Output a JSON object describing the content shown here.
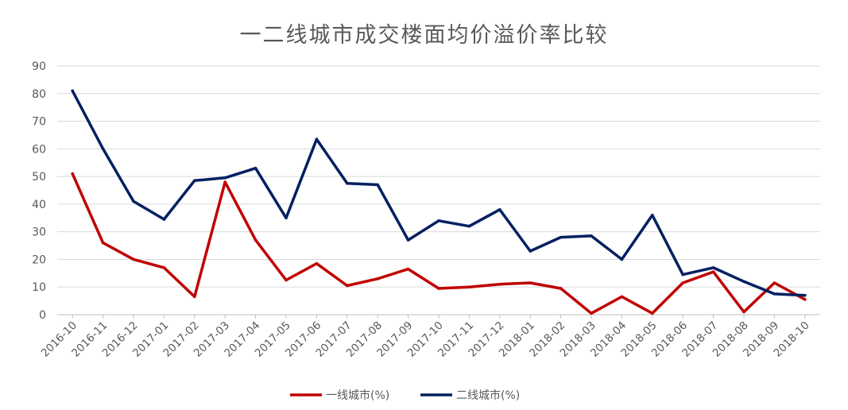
{
  "chart_data": {
    "type": "line",
    "title": "一二线城市成交楼面均价溢价率比较",
    "xlabel": "",
    "ylabel": "",
    "ylim": [
      0,
      90
    ],
    "yticks": [
      0,
      10,
      20,
      30,
      40,
      50,
      60,
      70,
      80,
      90
    ],
    "grid": true,
    "legend_position": "bottom",
    "categories": [
      "2016-10",
      "2016-11",
      "2016-12",
      "2017-01",
      "2017-02",
      "2017-03",
      "2017-04",
      "2017-05",
      "2017-06",
      "2017-07",
      "2017-08",
      "2017-09",
      "2017-10",
      "2017-11",
      "2017-12",
      "2018-01",
      "2018-02",
      "2018-03",
      "2018-04",
      "2018-05",
      "2018-06",
      "2018-07",
      "2018-08",
      "2018-09",
      "2018-10"
    ],
    "series": [
      {
        "name": "一线城市(%)",
        "color": "#c00000",
        "values": [
          51,
          26,
          20,
          17,
          6.5,
          48,
          27,
          12.5,
          18.5,
          10.5,
          13,
          16.5,
          9.5,
          10,
          11,
          11.5,
          9.5,
          0.5,
          6.5,
          0.5,
          11.5,
          15.5,
          1,
          11.5,
          5.5
        ]
      },
      {
        "name": "二线城市(%)",
        "color": "#002060",
        "values": [
          81,
          60,
          41,
          34.5,
          48.5,
          49.5,
          53,
          35,
          63.5,
          47.5,
          47,
          27,
          34,
          32,
          38,
          23,
          28,
          28.5,
          20,
          36,
          14.5,
          17,
          12,
          7.5,
          7
        ]
      }
    ]
  }
}
